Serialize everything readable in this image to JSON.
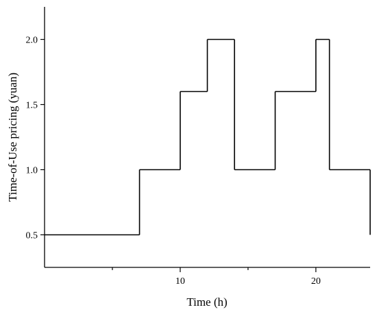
{
  "chart_data": {
    "type": "line",
    "step": true,
    "xlabel": "Time (h)",
    "ylabel": "Time-of-Use pricing (yuan)",
    "xlim": [
      0,
      24
    ],
    "ylim": [
      0.25,
      2.25
    ],
    "x_ticks_major": [
      10,
      20
    ],
    "x_ticks_minor": [
      5,
      15
    ],
    "y_ticks": [
      0.5,
      1.0,
      1.5,
      2.0
    ],
    "y_tick_labels": [
      "0.5",
      "1.0",
      "1.5",
      "2.0"
    ],
    "grid": false,
    "series": [
      {
        "steps": [
          {
            "x_start": 0,
            "x_end": 7,
            "y": 0.5
          },
          {
            "x_start": 7,
            "x_end": 10,
            "y": 1.0
          },
          {
            "x_start": 10,
            "x_end": 12,
            "y": 1.6
          },
          {
            "x_start": 12,
            "x_end": 14,
            "y": 2.0
          },
          {
            "x_start": 14,
            "x_end": 17,
            "y": 1.0
          },
          {
            "x_start": 17,
            "x_end": 20,
            "y": 1.6
          },
          {
            "x_start": 20,
            "x_end": 21,
            "y": 2.0
          },
          {
            "x_start": 21,
            "x_end": 24,
            "y": 1.0
          }
        ],
        "final_drop_to": 0.5
      }
    ]
  }
}
